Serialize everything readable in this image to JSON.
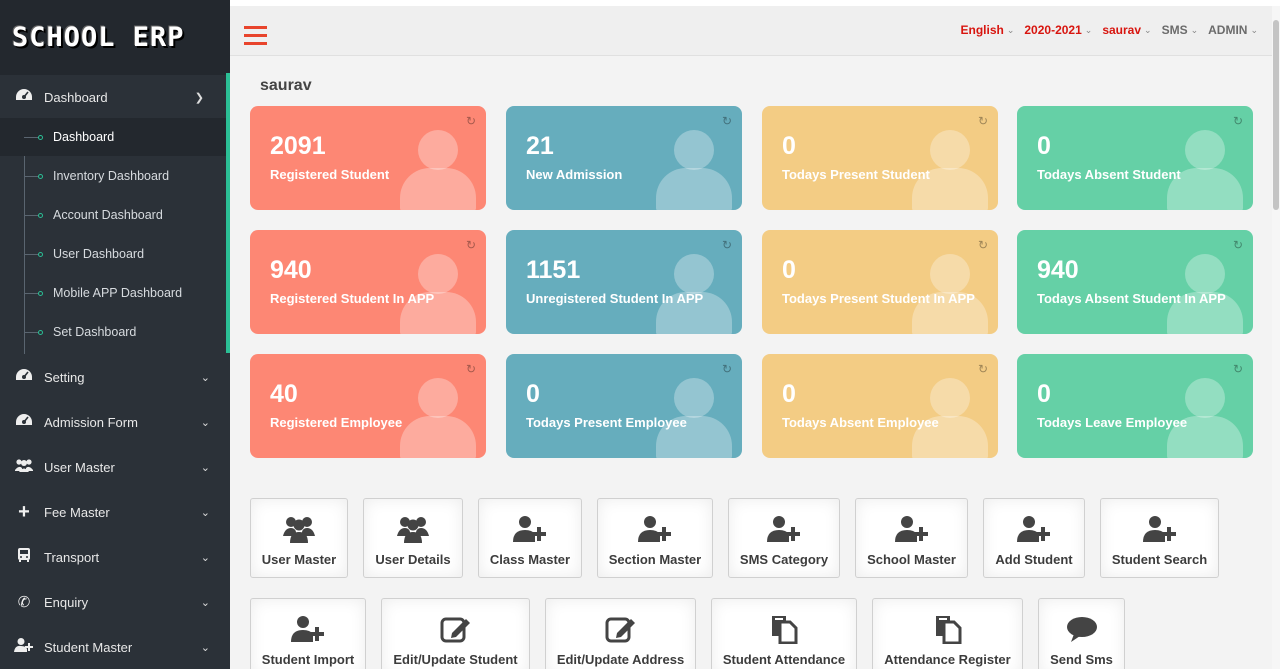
{
  "brand": "SCHOOL ERP",
  "sidebar": {
    "dashboard": "Dashboard",
    "sub": [
      "Dashboard",
      "Inventory Dashboard",
      "Account Dashboard",
      "User Dashboard",
      "Mobile APP Dashboard",
      "Set Dashboard"
    ],
    "items": [
      "Setting",
      "Admission Form",
      "User Master",
      "Fee Master",
      "Transport",
      "Enquiry",
      "Student Master"
    ]
  },
  "header": {
    "language": "English",
    "session": "2020-2021",
    "user": "saurav",
    "sms": "SMS",
    "role": "ADMIN"
  },
  "main": {
    "title": "saurav",
    "cards": [
      {
        "value": "2091",
        "label": "Registered Student",
        "color": "#fd8774"
      },
      {
        "value": "21",
        "label": "New Admission",
        "color": "#66adbd"
      },
      {
        "value": "0",
        "label": "Todays Present Student",
        "color": "#f3cc84"
      },
      {
        "value": "0",
        "label": "Todays Absent Student",
        "color": "#65d0a6"
      },
      {
        "value": "940",
        "label": "Registered Student In APP",
        "color": "#fd8774"
      },
      {
        "value": "1151",
        "label": "Unregistered Student In APP",
        "color": "#66adbd"
      },
      {
        "value": "0",
        "label": "Todays Present Student In APP",
        "color": "#f3cc84"
      },
      {
        "value": "940",
        "label": "Todays Absent Student In APP",
        "color": "#65d0a6"
      },
      {
        "value": "40",
        "label": "Registered Employee",
        "color": "#fd8774"
      },
      {
        "value": "0",
        "label": "Todays Present Employee",
        "color": "#66adbd"
      },
      {
        "value": "0",
        "label": "Todays Absent Employee",
        "color": "#f3cc84"
      },
      {
        "value": "0",
        "label": "Todays Leave Employee",
        "color": "#65d0a6"
      }
    ],
    "quick": [
      "User Master",
      "User Details",
      "Class Master",
      "Section Master",
      "SMS Category",
      "School Master",
      "Add Student",
      "Student Search",
      "Student Import",
      "Edit/Update Student",
      "Edit/Update Address",
      "Student Attendance",
      "Attendance Register",
      "Send Sms"
    ]
  },
  "icons": [
    "dashboard-icon",
    "gear-icon",
    "users-icon",
    "plus-icon",
    "bus-icon",
    "phone-icon",
    "user-add-icon",
    "refresh-icon",
    "edit-icon",
    "document-icon",
    "chat-icon"
  ]
}
